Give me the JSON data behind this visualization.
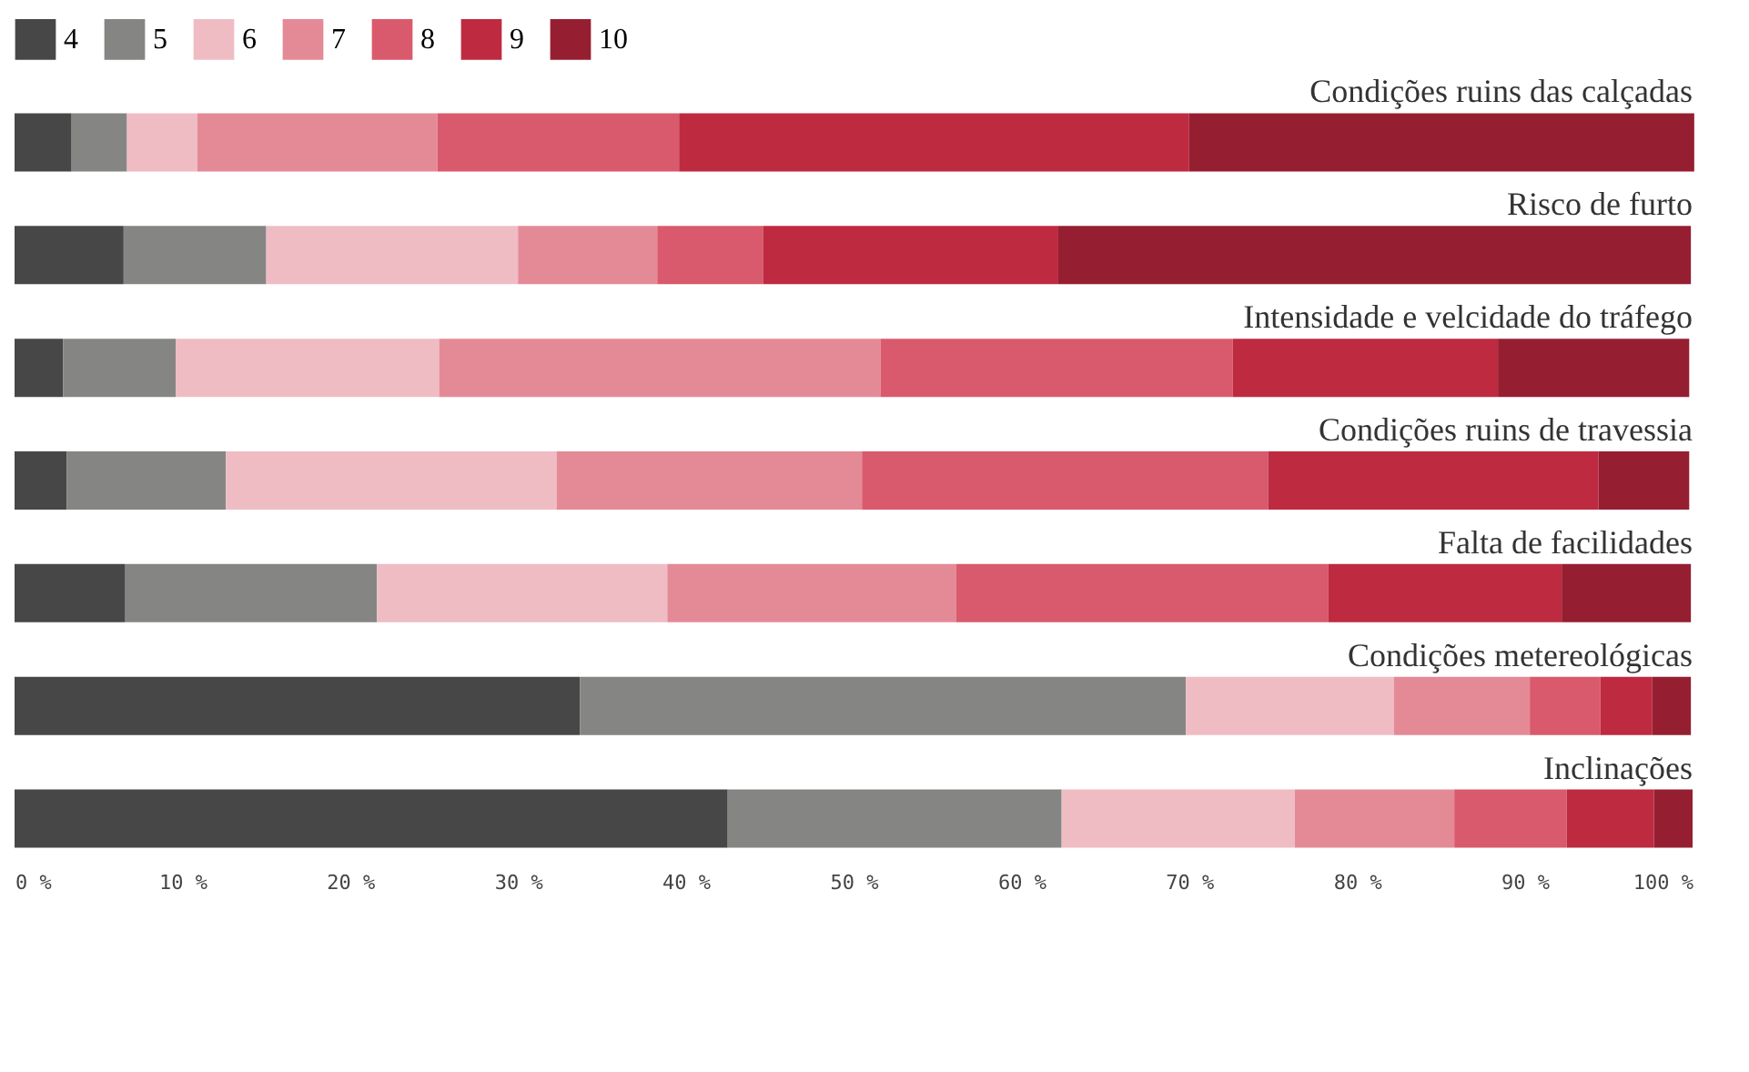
{
  "chart_data": {
    "type": "bar",
    "orientation": "horizontal",
    "stacked": true,
    "categories": [
      "Condições ruins das calçadas",
      "Risco de furto",
      "Intensidade e velcidade do tráfego",
      "Condições ruins de travessia",
      "Falta de facilidades",
      "Condições metereológicas",
      "Inclinações"
    ],
    "series": [
      {
        "name": "4",
        "color": "#474747",
        "values": [
          3.4,
          6.5,
          2.9,
          3.1,
          6.6,
          33.7,
          42.5
        ]
      },
      {
        "name": "5",
        "color": "#858683",
        "values": [
          3.3,
          8.5,
          6.7,
          9.5,
          15.0,
          36.1,
          19.9
        ]
      },
      {
        "name": "6",
        "color": "#efbcc4",
        "values": [
          4.2,
          15.0,
          15.7,
          19.7,
          17.3,
          12.4,
          13.9
        ]
      },
      {
        "name": "7",
        "color": "#e48a96",
        "values": [
          14.3,
          8.3,
          26.3,
          18.2,
          17.2,
          8.1,
          9.5
        ]
      },
      {
        "name": "8",
        "color": "#d95a6c",
        "values": [
          14.4,
          6.3,
          21.0,
          24.2,
          22.2,
          4.2,
          6.7
        ]
      },
      {
        "name": "9",
        "color": "#be2a40",
        "values": [
          30.4,
          17.6,
          15.8,
          19.7,
          13.9,
          3.1,
          5.2
        ]
      },
      {
        "name": "10",
        "color": "#951f31",
        "values": [
          30.1,
          37.7,
          11.4,
          5.4,
          7.7,
          2.3,
          2.3
        ]
      }
    ],
    "xlim": [
      0,
      100
    ],
    "xticks": [
      {
        "value": 0,
        "label": "0 %"
      },
      {
        "value": 10,
        "label": "10 %"
      },
      {
        "value": 20,
        "label": "20 %"
      },
      {
        "value": 30,
        "label": "30 %"
      },
      {
        "value": 40,
        "label": "40 %"
      },
      {
        "value": 50,
        "label": "50 %"
      },
      {
        "value": 60,
        "label": "60 %"
      },
      {
        "value": 70,
        "label": "70 %"
      },
      {
        "value": 80,
        "label": "80 %"
      },
      {
        "value": 90,
        "label": "90 %"
      },
      {
        "value": 100,
        "label": "100 %"
      }
    ],
    "grid": false,
    "legend": "top left"
  }
}
